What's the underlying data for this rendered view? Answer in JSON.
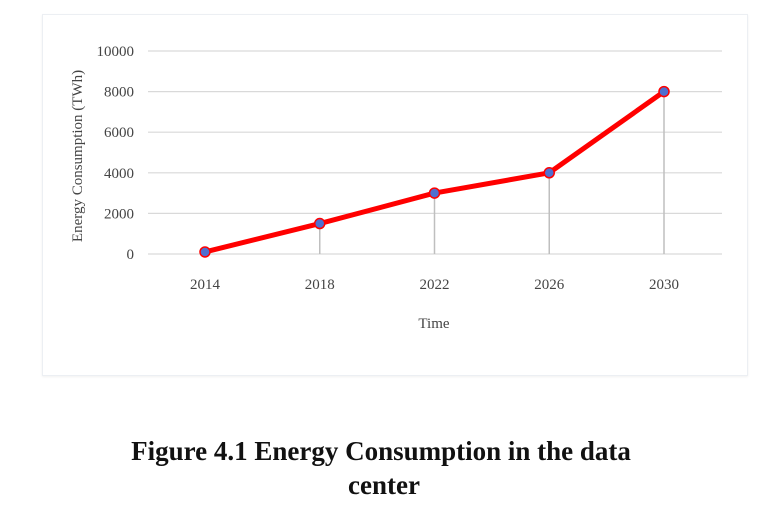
{
  "figure": {
    "caption_line1": "Figure 4.1 Energy Consumption in the data",
    "caption_line2": "center"
  },
  "chart_data": {
    "type": "line",
    "title": "",
    "xlabel": "Time",
    "ylabel": "Energy Consumption (TWh)",
    "categories": [
      "2014",
      "2018",
      "2022",
      "2026",
      "2030"
    ],
    "series": [
      {
        "values": [
          100,
          1500,
          3000,
          4000,
          8000
        ],
        "color": "#ff0000",
        "marker_color": "#4f6fd0"
      }
    ],
    "ylim": [
      0,
      10000
    ],
    "yticks": [
      "0",
      "2000",
      "4000",
      "6000",
      "8000",
      "10000"
    ],
    "ytick_values": [
      0,
      2000,
      4000,
      6000,
      8000,
      10000
    ],
    "grid": true,
    "drop_lines": true,
    "legend": "none",
    "colors": {
      "line": "#ff0000",
      "marker": "#4f6fd0",
      "grid": "#d9d9d9",
      "drop_line": "#bfbfbf"
    }
  }
}
